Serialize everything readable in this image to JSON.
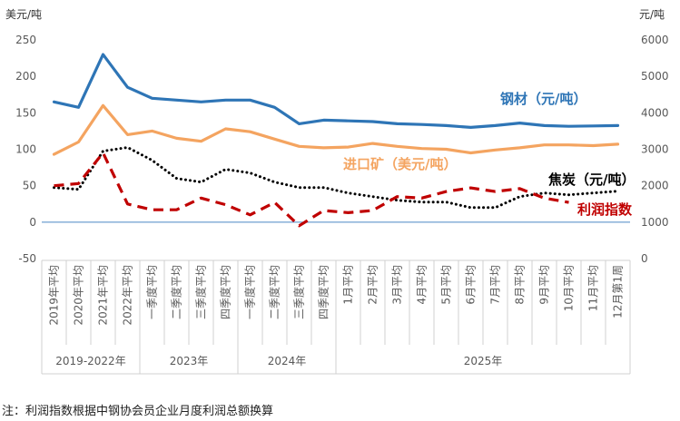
{
  "chart_data": {
    "type": "line",
    "left_axis_title": "美元/吨",
    "right_axis_title": "元/吨",
    "left_ylim": [
      -50,
      250
    ],
    "left_ticks": [
      "250",
      "200",
      "150",
      "100",
      "50",
      "0",
      "-50"
    ],
    "right_ylim": [
      0,
      6000
    ],
    "right_ticks": [
      "6000",
      "5000",
      "4000",
      "3000",
      "2000",
      "1000",
      "0"
    ],
    "categories": [
      "2019年平均",
      "2020年平均",
      "2021年平均",
      "2022年平均",
      "一季度平均",
      "二季度平均",
      "三季度平均",
      "四季度平均",
      "一季度平均",
      "二季度平均",
      "三季度平均",
      "四季度平均",
      "1月平均",
      "2月平均",
      "3月平均",
      "4月平均",
      "5月平均",
      "6月平均",
      "7月平均",
      "8月平均",
      "9月平均",
      "10月平均",
      "11月平均",
      "12月第1周"
    ],
    "groups": [
      {
        "label": "2019-2022年",
        "count": 4
      },
      {
        "label": "2023年",
        "count": 4
      },
      {
        "label": "2024年",
        "count": 4
      },
      {
        "label": "2025年",
        "count": 12
      }
    ],
    "series": [
      {
        "name": "钢材（元/吨）",
        "axis": "right",
        "color": "#2e75b6",
        "style": "solid",
        "values": [
          4300,
          4150,
          5600,
          4700,
          4400,
          4350,
          4300,
          4350,
          4350,
          4150,
          3700,
          3800,
          3780,
          3760,
          3700,
          3680,
          3650,
          3600,
          3650,
          3720,
          3650,
          3630,
          3640,
          3650
        ]
      },
      {
        "name": "进口矿（美元/吨）",
        "axis": "left",
        "color": "#f4a460",
        "style": "solid",
        "values": [
          93,
          110,
          160,
          120,
          125,
          115,
          111,
          128,
          124,
          114,
          104,
          102,
          103,
          108,
          104,
          101,
          100,
          95,
          99,
          102,
          106,
          106,
          105,
          107
        ]
      },
      {
        "name": "焦炭（元/吨）",
        "axis": "right",
        "color": "#000000",
        "style": "dotted",
        "values": [
          1950,
          1900,
          2950,
          3050,
          2700,
          2200,
          2100,
          2450,
          2350,
          2100,
          1950,
          1950,
          1800,
          1700,
          1600,
          1550,
          1550,
          1400,
          1400,
          1700,
          1800,
          1750,
          1800,
          1850
        ]
      },
      {
        "name": "利润指数",
        "axis": "left",
        "color": "#c00000",
        "style": "dashed",
        "values": [
          50,
          53,
          95,
          25,
          17,
          17,
          33,
          24,
          10,
          27,
          -5,
          16,
          13,
          16,
          35,
          33,
          42,
          47,
          42,
          46,
          33,
          27,
          null,
          null
        ]
      }
    ],
    "labels": {
      "steel": "钢材（元/吨）",
      "ore": "进口矿（美元/吨）",
      "coke": "焦炭（元/吨）",
      "profit": "利润指数"
    }
  },
  "note": "注：利润指数根据中钢协会员企业月度利润总额换算"
}
